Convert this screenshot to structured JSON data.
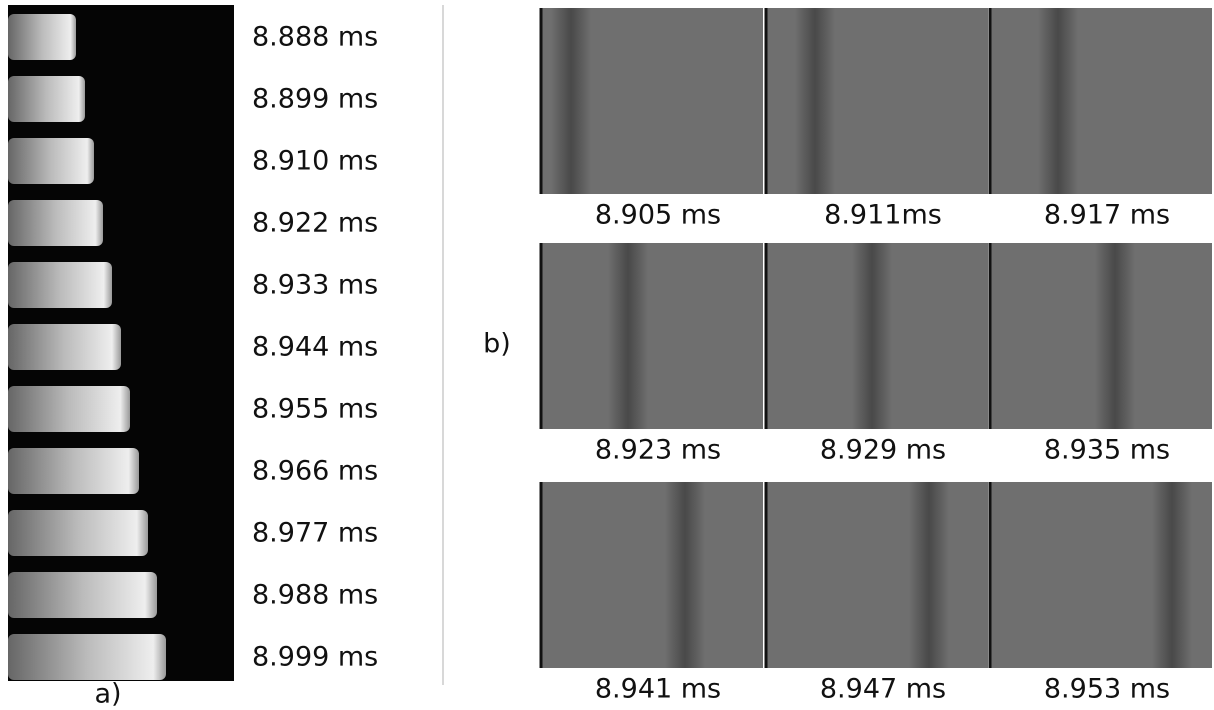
{
  "panel_a": {
    "label": "a)",
    "frames": [
      "8.888 ms",
      "8.899 ms",
      "8.910 ms",
      "8.922 ms",
      "8.933 ms",
      "8.944 ms",
      "8.955 ms",
      "8.966 ms",
      "8.977 ms",
      "8.988 ms",
      "8.999 ms"
    ]
  },
  "panel_b": {
    "label": "b)",
    "frames": [
      "8.905 ms",
      "8.911ms",
      "8.917 ms",
      "8.923 ms",
      "8.929 ms",
      "8.935 ms",
      "8.941 ms",
      "8.947 ms",
      "8.953 ms"
    ]
  }
}
